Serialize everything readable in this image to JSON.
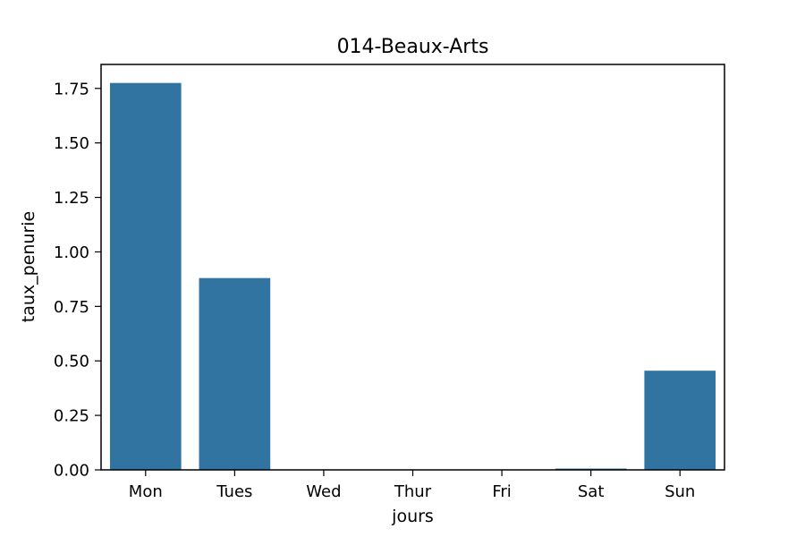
{
  "chart_data": {
    "type": "bar",
    "title": "014-Beaux-Arts",
    "xlabel": "jours",
    "ylabel": "taux_penurie",
    "categories": [
      "Mon",
      "Tues",
      "Wed",
      "Thur",
      "Fri",
      "Sat",
      "Sun"
    ],
    "values": [
      1.775,
      0.88,
      0.0,
      0.0,
      0.0,
      0.006,
      0.455
    ],
    "ylim": [
      0,
      1.86
    ],
    "yticks": [
      "0.00",
      "0.25",
      "0.50",
      "0.75",
      "1.00",
      "1.25",
      "1.50",
      "1.75"
    ],
    "bar_color": "#3274a1",
    "grid": false,
    "legend": "none"
  }
}
